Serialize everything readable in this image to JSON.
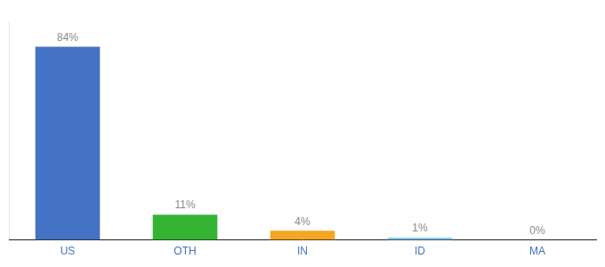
{
  "chart_data": {
    "type": "bar",
    "categories": [
      "US",
      "OTH",
      "IN",
      "ID",
      "MA"
    ],
    "values": [
      84,
      11,
      4,
      1,
      0
    ],
    "value_labels": [
      "84%",
      "11%",
      "4%",
      "1%",
      "0%"
    ],
    "colors": [
      "#4472c4",
      "#33b533",
      "#f5a623",
      "#87ceeb",
      "#cccccc"
    ],
    "ylim": [
      0,
      95
    ],
    "grid": false,
    "data_labels": true,
    "tick_labels": "x"
  }
}
